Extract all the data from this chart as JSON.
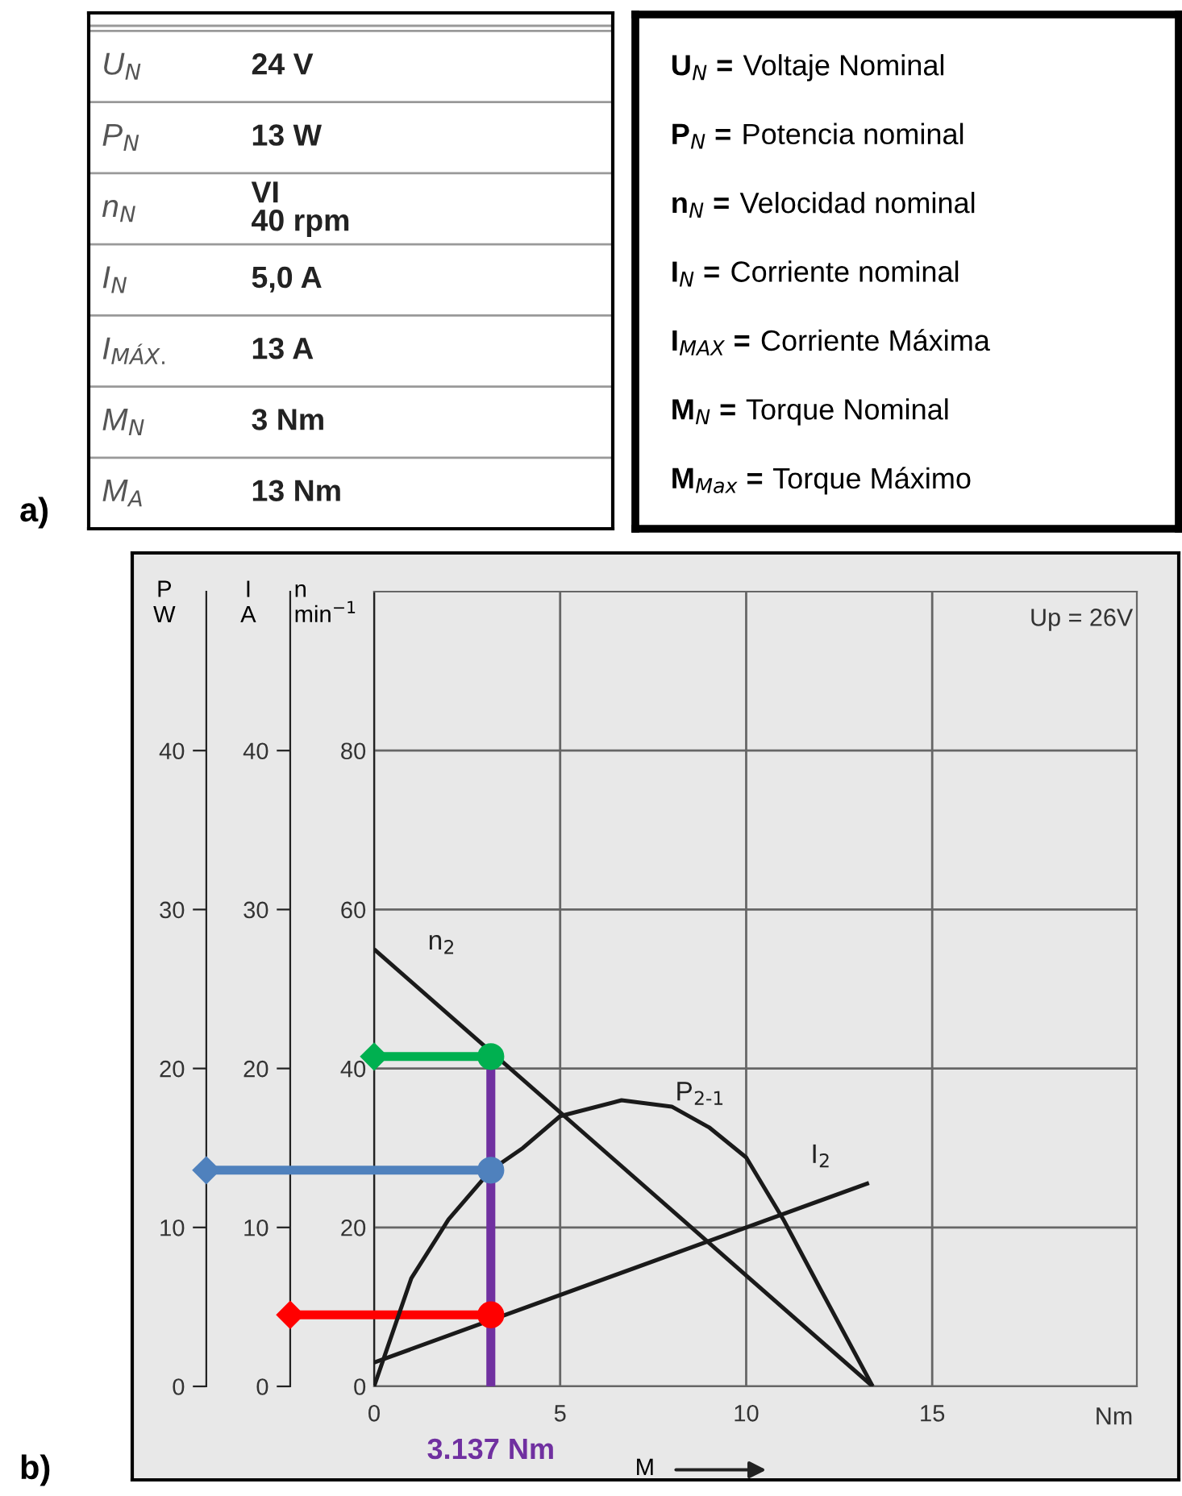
{
  "chart_data": [
    {
      "type": "other",
      "annotations": [
        "a)",
        "U$_{N}$",
        "24 V",
        "P$_{N}$",
        "13 W",
        "n$_{N}$",
        "VI\n40 rpm",
        "I$_{N}$",
        "5,0 A",
        "I$_{MÁX.}$",
        "13 A",
        "M$_{N}$",
        "3 Nm",
        "M$_{A}$",
        "13 Nm"
      ]
    },
    {
      "type": "other",
      "annotations": [
        "U$_{N}$ = Voltaje Nominal",
        "P$_{N}$ = Potencia nominal",
        "n$_{N}$ = Velocidad nominal",
        "I$_{N}$ = Corriente nominal",
        "I$_{MAX}$ = Corriente Máxima",
        "M$_{N}$ = Torque Nominal",
        "M$_{Max}$ = Torque Máximo"
      ]
    },
    {
      "type": "line",
      "xlabel": "M",
      "xlim": [
        0,
        20.5
      ],
      "xticks": [
        0,
        5,
        10,
        15
      ],
      "ylabel": "n\nmin$^{−1}$",
      "ylim": [
        0,
        100
      ],
      "yticks": [
        0,
        20,
        40,
        60,
        80
      ],
      "y2label": "I\nA",
      "y2lim": [
        0,
        50
      ],
      "y2ticks": [
        0,
        10,
        20,
        30,
        40
      ],
      "y3label": "P\nW",
      "y3lim": [
        0,
        50
      ],
      "y3ticks": [
        0,
        10,
        20,
        30,
        40
      ],
      "grid": true,
      "series": [
        {
          "name": "n$_{2}$",
          "color": "#1a1a1a",
          "x": [
            0,
            13.4
          ],
          "values": [
            55,
            0
          ]
        },
        {
          "name": "P$_{2-1}$",
          "color": "#1a1a1a",
          "axis": "y3",
          "x": [
            0,
            1,
            2,
            3.137,
            4,
            5,
            6.65,
            8,
            9,
            10,
            11,
            12,
            13.4
          ],
          "values": [
            0,
            6.8,
            10.5,
            13.6,
            15,
            17,
            18,
            17.6,
            16.3,
            14.4,
            10.5,
            6.1,
            0
          ]
        },
        {
          "name": "I$_{2}$",
          "color": "#1a1a1a",
          "axis": "y2",
          "x": [
            0,
            13.3
          ],
          "values": [
            1.5,
            12.8
          ]
        },
        {
          "color": "#7030a0",
          "x": [
            3.137,
            3.137
          ],
          "values": [
            41.5,
            0
          ]
        },
        {
          "color": "#00b050",
          "x": [
            0,
            3.137
          ],
          "values": [
            41.5,
            41.5
          ],
          "marker": [
            "diamond",
            "circle"
          ]
        },
        {
          "color": "#4f81bd",
          "axis": "y3",
          "x": [
            0,
            3.137
          ],
          "values": [
            13.6,
            13.6
          ],
          "marker": [
            "diamond",
            "circle"
          ]
        },
        {
          "color": "#ff0000",
          "axis": "y2",
          "x": [
            0,
            3.137
          ],
          "values": [
            4.5,
            4.5
          ],
          "marker": [
            "diamond",
            "circle"
          ]
        }
      ],
      "annotations": [
        "Up = 26V",
        "Nm",
        {
          "text": "3.137 Nm",
          "x": 3.137,
          "y": 0
        },
        "b)"
      ]
    }
  ]
}
